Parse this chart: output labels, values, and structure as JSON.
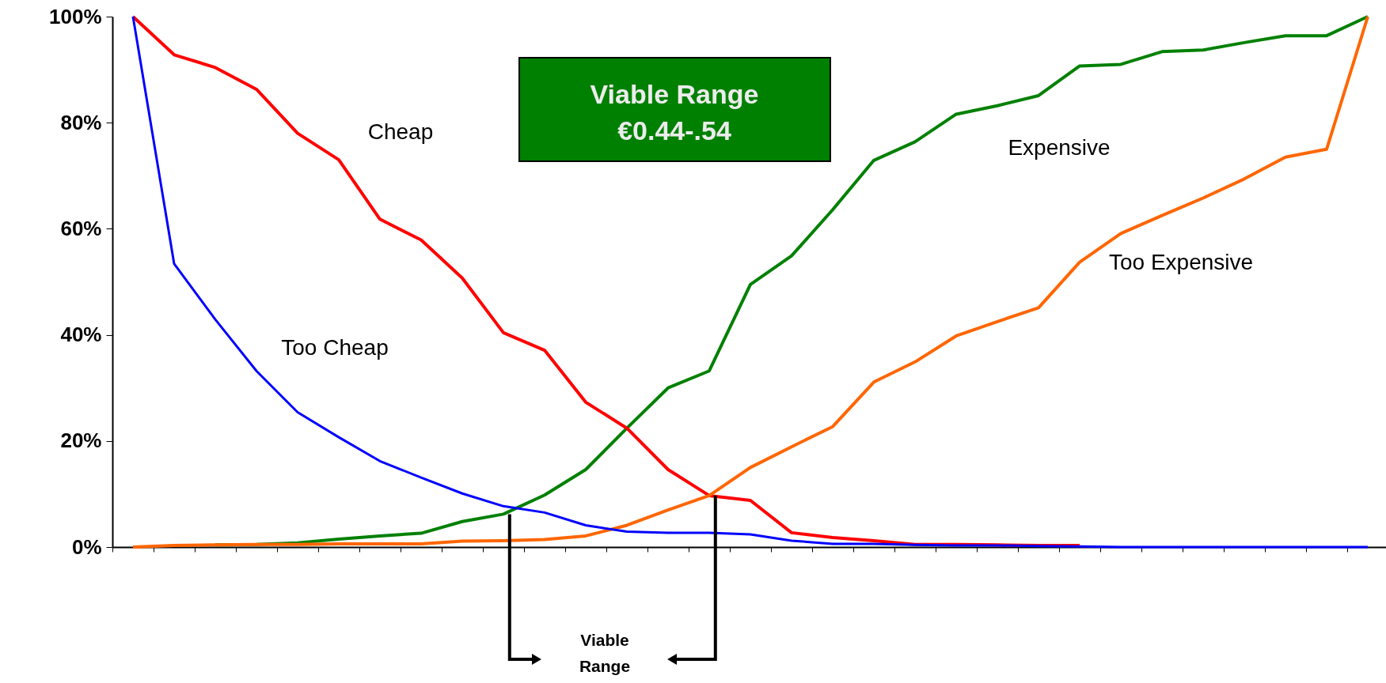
{
  "chart_data": {
    "type": "line",
    "categories": [
      null,
      null,
      null,
      null,
      null,
      null,
      null,
      null,
      null,
      null,
      null,
      null,
      null,
      null,
      null,
      null,
      null,
      null,
      null,
      null,
      null,
      null,
      null,
      null,
      null,
      null,
      null,
      null,
      null,
      null,
      null
    ],
    "series": [
      {
        "name": "Too Cheap",
        "color": "#0000ff",
        "values": [
          100,
          53.4,
          42.9,
          33.2,
          25.4,
          20.7,
          16.2,
          13.1,
          10.1,
          7.7,
          6.5,
          4.1,
          2.9,
          2.7,
          2.7,
          2.4,
          1.2,
          0.6,
          0.6,
          0.4,
          0.3,
          0.3,
          0.2,
          0.1,
          0,
          0,
          0,
          0,
          0,
          0,
          0
        ]
      },
      {
        "name": "Cheap",
        "color": "#ff0000",
        "values": [
          100,
          92.8,
          90.4,
          86.3,
          78.0,
          73.0,
          61.8,
          57.9,
          50.7,
          40.4,
          37.1,
          27.3,
          22.4,
          14.6,
          9.7,
          8.8,
          2.7,
          1.8,
          1.2,
          0.5,
          0.5,
          0.4,
          0.3,
          0.3,
          null,
          null,
          null,
          null,
          null,
          null,
          null
        ]
      },
      {
        "name": "Expensive",
        "color": "#008000",
        "values": [
          null,
          null,
          0.4,
          0.5,
          0.8,
          1.5,
          2.1,
          2.6,
          4.8,
          6.2,
          9.8,
          14.6,
          22.4,
          30.0,
          33.2,
          49.5,
          54.9,
          63.6,
          72.9,
          76.4,
          81.6,
          83.2,
          85.1,
          90.7,
          91.0,
          93.4,
          93.7,
          95.1,
          96.4,
          96.4,
          100
        ]
      },
      {
        "name": "Too Expensive",
        "color": "#ff6600",
        "values": [
          0,
          0.3,
          0.4,
          0.5,
          0.5,
          0.6,
          0.6,
          0.6,
          1.1,
          1.2,
          1.4,
          2.1,
          4.1,
          7.0,
          9.7,
          15.0,
          18.9,
          22.7,
          31.1,
          34.9,
          39.8,
          42.5,
          45.1,
          53.7,
          59.1,
          62.5,
          65.8,
          69.4,
          73.5,
          75.0,
          100
        ]
      }
    ],
    "ylim": [
      0,
      100
    ],
    "yticks": [
      {
        "value": 0,
        "label": "0%"
      },
      {
        "value": 20,
        "label": "20%"
      },
      {
        "value": 40,
        "label": "40%"
      },
      {
        "value": 60,
        "label": "60%"
      },
      {
        "value": 80,
        "label": "80%"
      },
      {
        "value": 100,
        "label": "100%"
      }
    ],
    "tick_labels": "y",
    "annotations": [
      "Viable Range\n€0.44-.54",
      "Viable\nRange"
    ]
  }
}
